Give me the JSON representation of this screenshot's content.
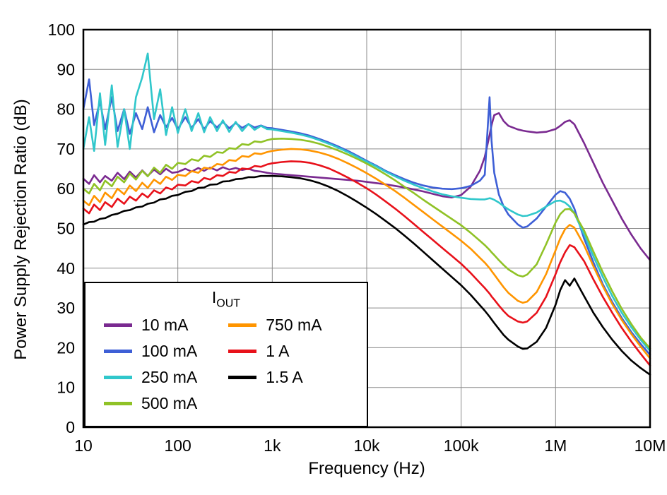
{
  "figure": {
    "background": "#ffffff",
    "grid_color": "#8a8a8a",
    "border_color": "#000000"
  },
  "chart_data": {
    "type": "line",
    "title": "",
    "xlabel": "Frequency (Hz)",
    "ylabel": "Power Supply Rejection Ratio (dB)",
    "x_scale": "log",
    "xlim": [
      10,
      10000000
    ],
    "ylim": [
      0,
      100
    ],
    "grid": true,
    "x_ticks": [
      {
        "v": 10,
        "label": "10"
      },
      {
        "v": 100,
        "label": "100"
      },
      {
        "v": 1000,
        "label": "1k"
      },
      {
        "v": 10000,
        "label": "10k"
      },
      {
        "v": 100000,
        "label": "100k"
      },
      {
        "v": 1000000,
        "label": "1M"
      },
      {
        "v": 10000000,
        "label": "10M"
      }
    ],
    "y_ticks": [
      0,
      10,
      20,
      30,
      40,
      50,
      60,
      70,
      80,
      90,
      100
    ],
    "legend": {
      "title_main": "I",
      "title_sub": "OUT",
      "position": "lower left",
      "columns": [
        4,
        3
      ]
    },
    "x": [
      10,
      11.5,
      13,
      15,
      17,
      20,
      23,
      27,
      31,
      36,
      42,
      48,
      56,
      65,
      75,
      87,
      100,
      120,
      140,
      165,
      190,
      220,
      260,
      300,
      350,
      410,
      480,
      560,
      650,
      760,
      880,
      1000,
      1260,
      1580,
      2000,
      2510,
      3160,
      3980,
      5010,
      6310,
      7940,
      10000,
      12600,
      15800,
      20000,
      25100,
      31600,
      39800,
      50100,
      63100,
      79400,
      100000,
      126000,
      158000,
      178000,
      200000,
      210000,
      224000,
      251000,
      282000,
      316000,
      398000,
      450000,
      501000,
      631000,
      794000,
      1000000,
      1120000,
      1260000,
      1410000,
      1580000,
      2000000,
      2510000,
      3160000,
      3980000,
      5010000,
      6310000,
      7940000,
      10000000
    ],
    "series": [
      {
        "name": "10 mA",
        "color": "#7A2A90",
        "y": [
          62.5,
          61.2,
          63.4,
          61.6,
          63.2,
          62.0,
          64.0,
          62.4,
          64.3,
          62.8,
          64.6,
          63.2,
          64.8,
          63.6,
          65.0,
          64.0,
          64.2,
          65.0,
          64.3,
          65.2,
          64.5,
          65.3,
          64.6,
          65.4,
          64.8,
          65.2,
          64.7,
          65.0,
          64.5,
          64.3,
          64.0,
          63.8,
          63.6,
          63.4,
          63.2,
          63.0,
          62.8,
          62.6,
          62.4,
          62.2,
          62.0,
          61.7,
          61.4,
          61.1,
          60.7,
          60.3,
          59.8,
          59.3,
          58.7,
          58.1,
          57.8,
          58.4,
          60.5,
          64.5,
          68.0,
          73.5,
          76.0,
          78.5,
          79.0,
          77.0,
          75.8,
          74.9,
          74.6,
          74.4,
          74.1,
          74.3,
          75.0,
          75.8,
          76.8,
          77.2,
          76.2,
          71.5,
          66.5,
          61.5,
          57.0,
          52.5,
          48.5,
          45.0,
          42.0
        ]
      },
      {
        "name": "100 mA",
        "color": "#3E5FD6",
        "y": [
          80.0,
          87.5,
          76.0,
          82.0,
          75.0,
          83.0,
          74.5,
          80.0,
          73.8,
          79.0,
          75.0,
          80.5,
          74.2,
          78.5,
          75.5,
          77.8,
          75.0,
          78.0,
          75.3,
          77.5,
          75.0,
          77.0,
          75.4,
          76.8,
          75.2,
          76.5,
          75.3,
          76.2,
          75.4,
          75.9,
          75.3,
          75.2,
          74.8,
          74.4,
          73.9,
          73.3,
          72.5,
          71.6,
          70.6,
          69.5,
          68.3,
          67.0,
          65.8,
          64.5,
          63.4,
          62.4,
          61.5,
          60.8,
          60.3,
          60.0,
          59.9,
          60.1,
          60.7,
          62.0,
          63.5,
          83.0,
          72.0,
          64.0,
          58.5,
          55.5,
          53.5,
          51.0,
          50.2,
          50.5,
          52.5,
          55.5,
          58.5,
          59.4,
          59.0,
          57.5,
          55.0,
          47.5,
          41.5,
          36.0,
          31.5,
          27.5,
          24.0,
          21.0,
          18.2
        ]
      },
      {
        "name": "250 mA",
        "color": "#30C7CB",
        "y": [
          70.0,
          78.0,
          69.5,
          84.0,
          71.0,
          86.0,
          70.5,
          80.0,
          70.0,
          83.0,
          88.0,
          94.0,
          77.5,
          85.0,
          73.5,
          80.5,
          74.0,
          80.0,
          74.5,
          79.0,
          74.2,
          78.0,
          74.5,
          77.2,
          74.3,
          76.8,
          74.5,
          76.3,
          74.8,
          75.8,
          75.0,
          74.9,
          74.5,
          74.1,
          73.6,
          73.0,
          72.2,
          71.3,
          70.3,
          69.2,
          68.0,
          66.8,
          65.6,
          64.3,
          63.1,
          62.0,
          61.0,
          60.1,
          59.3,
          58.6,
          58.1,
          57.7,
          57.4,
          57.3,
          57.3,
          57.6,
          57.5,
          57.2,
          56.5,
          55.6,
          54.8,
          53.5,
          53.1,
          53.2,
          54.0,
          55.5,
          56.9,
          57.0,
          56.5,
          55.5,
          53.8,
          48.5,
          43.0,
          37.8,
          33.0,
          28.8,
          25.2,
          22.0,
          19.2
        ]
      },
      {
        "name": "500 mA",
        "color": "#90C226",
        "y": [
          60.0,
          58.8,
          61.2,
          59.6,
          62.0,
          60.6,
          63.0,
          61.6,
          63.8,
          62.3,
          64.5,
          63.1,
          65.3,
          64.0,
          66.0,
          65.0,
          66.5,
          66.2,
          67.4,
          67.0,
          68.3,
          68.0,
          69.2,
          69.0,
          70.2,
          70.0,
          71.2,
          71.0,
          71.9,
          71.7,
          72.2,
          72.5,
          72.6,
          72.5,
          72.3,
          71.9,
          71.3,
          70.5,
          69.6,
          68.6,
          67.5,
          66.3,
          65.0,
          63.6,
          62.1,
          60.5,
          58.9,
          57.2,
          55.6,
          54.0,
          52.4,
          50.8,
          48.9,
          46.9,
          45.8,
          44.6,
          44.0,
          43.3,
          42.0,
          40.8,
          39.7,
          38.2,
          37.9,
          38.4,
          41.0,
          46.0,
          51.5,
          53.6,
          54.8,
          54.9,
          53.8,
          49.5,
          44.2,
          39.0,
          34.2,
          29.8,
          26.0,
          22.6,
          19.8
        ]
      },
      {
        "name": "750 mA",
        "color": "#FF9500",
        "y": [
          57.0,
          55.8,
          58.2,
          56.6,
          59.0,
          57.6,
          60.0,
          58.6,
          60.8,
          59.4,
          61.5,
          60.2,
          62.3,
          61.2,
          63.0,
          62.2,
          63.5,
          63.2,
          64.4,
          64.0,
          65.3,
          65.0,
          66.2,
          66.0,
          67.2,
          67.0,
          68.2,
          68.0,
          68.9,
          68.7,
          69.2,
          69.5,
          69.8,
          70.0,
          69.9,
          69.6,
          69.1,
          68.4,
          67.5,
          66.4,
          65.2,
          63.9,
          62.5,
          61.0,
          59.4,
          57.7,
          55.9,
          54.1,
          52.3,
          50.5,
          48.7,
          46.9,
          44.9,
          42.6,
          41.4,
          40.0,
          39.3,
          38.4,
          36.8,
          35.2,
          33.8,
          31.8,
          31.3,
          31.6,
          34.0,
          38.5,
          44.5,
          47.5,
          49.8,
          50.9,
          50.2,
          45.8,
          40.5,
          35.5,
          31.0,
          27.0,
          23.5,
          20.3,
          17.3
        ]
      },
      {
        "name": "1 A",
        "color": "#E8111A",
        "y": [
          55.0,
          53.8,
          56.0,
          54.6,
          56.6,
          55.4,
          57.5,
          56.2,
          58.0,
          57.0,
          58.8,
          57.8,
          59.6,
          58.8,
          60.3,
          59.8,
          61.0,
          60.8,
          61.9,
          61.5,
          62.7,
          62.3,
          63.4,
          63.2,
          64.2,
          64.0,
          65.1,
          64.9,
          65.7,
          65.5,
          66.1,
          66.4,
          66.7,
          66.9,
          66.8,
          66.5,
          65.9,
          65.1,
          64.0,
          62.8,
          61.5,
          60.1,
          58.5,
          56.8,
          55.0,
          53.1,
          51.1,
          49.1,
          47.1,
          45.1,
          43.1,
          41.1,
          38.8,
          36.3,
          35.0,
          33.6,
          32.9,
          32.1,
          30.6,
          29.2,
          28.0,
          26.6,
          26.3,
          26.6,
          28.8,
          32.8,
          38.5,
          41.5,
          44.0,
          45.8,
          45.3,
          41.8,
          37.2,
          32.8,
          28.8,
          25.0,
          21.6,
          18.5,
          15.5
        ]
      },
      {
        "name": "1.5 A",
        "color": "#000000",
        "y": [
          51.0,
          51.6,
          51.7,
          52.4,
          52.6,
          53.4,
          53.7,
          54.4,
          54.6,
          55.3,
          55.5,
          56.2,
          56.5,
          57.3,
          57.5,
          58.2,
          58.4,
          59.2,
          59.4,
          60.2,
          60.3,
          61.0,
          61.1,
          61.8,
          61.9,
          62.4,
          62.5,
          62.9,
          62.9,
          63.2,
          63.2,
          63.2,
          63.1,
          62.9,
          62.6,
          62.1,
          61.4,
          60.5,
          59.4,
          58.1,
          56.7,
          55.2,
          53.6,
          51.9,
          50.1,
          48.2,
          46.2,
          44.1,
          42.0,
          39.9,
          37.8,
          35.7,
          33.3,
          30.7,
          29.3,
          27.8,
          27.1,
          26.2,
          24.7,
          23.2,
          22.0,
          20.3,
          19.7,
          19.8,
          21.5,
          25.0,
          30.8,
          34.5,
          37.0,
          35.6,
          37.4,
          33.0,
          28.8,
          25.2,
          22.0,
          19.2,
          16.8,
          14.9,
          13.2
        ]
      }
    ]
  }
}
